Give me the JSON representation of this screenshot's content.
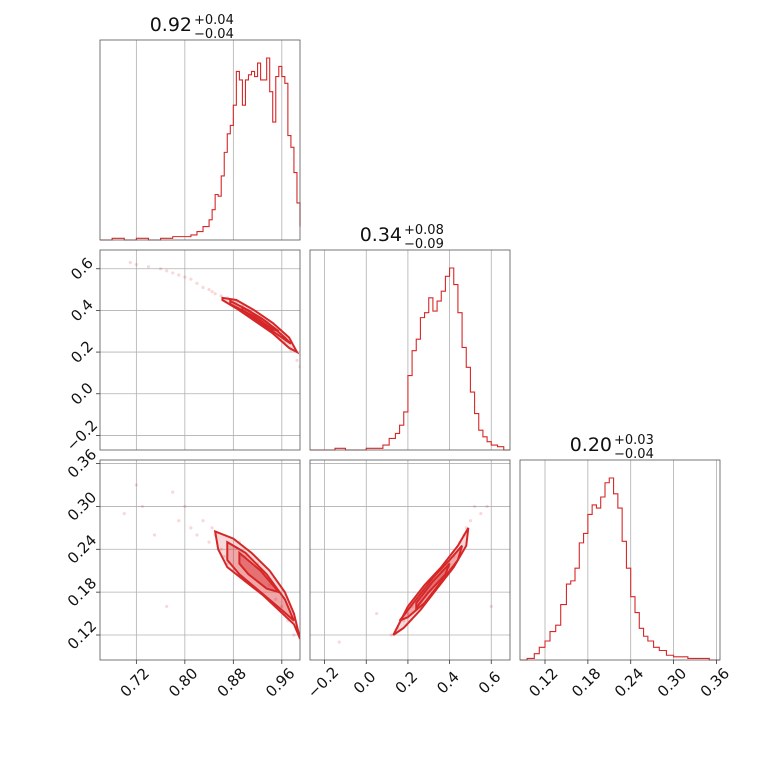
{
  "chart_data": {
    "type": "corner",
    "color": "#d62728",
    "parameters": [
      {
        "title": {
          "value": "0.92",
          "plus": "+0.04",
          "minus": "−0.04"
        },
        "range": [
          0.66,
          0.99
        ],
        "ticks": [
          0.72,
          0.8,
          0.88,
          0.96
        ],
        "tick_labels": [
          "0.72",
          "0.80",
          "0.88",
          "0.96"
        ],
        "hist_x": [
          0.66,
          0.68,
          0.7,
          0.72,
          0.74,
          0.76,
          0.78,
          0.8,
          0.81,
          0.82,
          0.83,
          0.84,
          0.845,
          0.85,
          0.855,
          0.86,
          0.865,
          0.87,
          0.875,
          0.88,
          0.885,
          0.89,
          0.895,
          0.9,
          0.905,
          0.91,
          0.915,
          0.92,
          0.925,
          0.93,
          0.935,
          0.94,
          0.945,
          0.95,
          0.955,
          0.96,
          0.965,
          0.97,
          0.975,
          0.98,
          0.985,
          0.99
        ],
        "hist_counts": [
          0,
          1,
          0,
          1,
          0,
          1,
          2,
          2,
          3,
          5,
          8,
          12,
          18,
          27,
          26,
          38,
          52,
          63,
          68,
          80,
          100,
          95,
          80,
          95,
          98,
          100,
          97,
          105,
          95,
          95,
          108,
          88,
          70,
          97,
          103,
          97,
          93,
          62,
          55,
          40,
          22,
          8
        ]
      },
      {
        "title": {
          "value": "0.34",
          "plus": "+0.08",
          "minus": "−0.09"
        },
        "range": [
          -0.27,
          0.69
        ],
        "ticks": [
          -0.2,
          0.0,
          0.2,
          0.4,
          0.6
        ],
        "tick_labels": [
          "−0.2",
          "0.0",
          "0.2",
          "0.4",
          "0.6"
        ],
        "hist_x": [
          -0.27,
          -0.2,
          -0.15,
          -0.1,
          -0.05,
          0.0,
          0.05,
          0.08,
          0.11,
          0.14,
          0.16,
          0.18,
          0.2,
          0.22,
          0.24,
          0.26,
          0.28,
          0.3,
          0.32,
          0.34,
          0.36,
          0.38,
          0.4,
          0.42,
          0.44,
          0.46,
          0.48,
          0.5,
          0.52,
          0.54,
          0.56,
          0.58,
          0.6,
          0.63,
          0.66,
          0.69
        ],
        "hist_counts": [
          0,
          0,
          1,
          0,
          0,
          1,
          1,
          3,
          7,
          10,
          15,
          23,
          45,
          60,
          67,
          80,
          83,
          92,
          84,
          90,
          96,
          105,
          110,
          100,
          83,
          62,
          50,
          35,
          22,
          12,
          8,
          5,
          3,
          2,
          0,
          0
        ]
      },
      {
        "title": {
          "value": "0.20",
          "plus": "+0.03",
          "minus": "−0.04"
        },
        "range": [
          0.085,
          0.365
        ],
        "ticks": [
          0.12,
          0.18,
          0.24,
          0.3,
          0.36
        ],
        "tick_labels": [
          "0.12",
          "0.18",
          "0.24",
          "0.30",
          "0.36"
        ],
        "hist_x": [
          0.085,
          0.095,
          0.105,
          0.112,
          0.12,
          0.127,
          0.135,
          0.142,
          0.15,
          0.156,
          0.162,
          0.168,
          0.174,
          0.18,
          0.186,
          0.192,
          0.198,
          0.204,
          0.21,
          0.216,
          0.222,
          0.228,
          0.234,
          0.24,
          0.246,
          0.252,
          0.258,
          0.264,
          0.272,
          0.28,
          0.29,
          0.3,
          0.31,
          0.32,
          0.335,
          0.35,
          0.365
        ],
        "hist_counts": [
          0,
          1,
          4,
          8,
          12,
          18,
          22,
          35,
          48,
          50,
          58,
          74,
          80,
          92,
          98,
          96,
          103,
          112,
          115,
          105,
          96,
          75,
          58,
          40,
          30,
          20,
          15,
          12,
          8,
          6,
          3,
          2,
          2,
          1,
          1,
          0,
          0
        ]
      }
    ],
    "pairs": [
      {
        "x": 0,
        "y": 1,
        "points": [
          [
            0.71,
            0.63
          ],
          [
            0.72,
            0.62
          ],
          [
            0.74,
            0.61
          ],
          [
            0.76,
            0.6
          ],
          [
            0.77,
            0.59
          ],
          [
            0.78,
            0.58
          ],
          [
            0.79,
            0.57
          ],
          [
            0.8,
            0.56
          ],
          [
            0.81,
            0.55
          ],
          [
            0.82,
            0.53
          ],
          [
            0.83,
            0.51
          ],
          [
            0.84,
            0.5
          ],
          [
            0.845,
            0.49
          ],
          [
            0.85,
            0.48
          ],
          [
            0.86,
            0.47
          ],
          [
            0.87,
            0.46
          ],
          [
            0.875,
            0.45
          ],
          [
            0.885,
            0.44
          ],
          [
            0.895,
            0.42
          ],
          [
            0.905,
            0.4
          ],
          [
            0.915,
            0.38
          ],
          [
            0.925,
            0.36
          ],
          [
            0.935,
            0.34
          ],
          [
            0.945,
            0.31
          ],
          [
            0.955,
            0.28
          ],
          [
            0.965,
            0.25
          ],
          [
            0.975,
            0.21
          ],
          [
            0.985,
            0.16
          ],
          [
            0.99,
            0.13
          ]
        ],
        "contours": [
          [
            [
              0.862,
              0.46
            ],
            [
              0.885,
              0.45
            ],
            [
              0.915,
              0.4
            ],
            [
              0.945,
              0.34
            ],
            [
              0.972,
              0.27
            ],
            [
              0.985,
              0.2
            ],
            [
              0.972,
              0.22
            ],
            [
              0.945,
              0.29
            ],
            [
              0.915,
              0.35
            ],
            [
              0.885,
              0.41
            ],
            [
              0.862,
              0.45
            ]
          ],
          [
            [
              0.875,
              0.445
            ],
            [
              0.905,
              0.4
            ],
            [
              0.935,
              0.345
            ],
            [
              0.965,
              0.27
            ],
            [
              0.975,
              0.24
            ],
            [
              0.955,
              0.28
            ],
            [
              0.925,
              0.34
            ],
            [
              0.895,
              0.4
            ],
            [
              0.875,
              0.43
            ]
          ],
          [
            [
              0.895,
              0.415
            ],
            [
              0.925,
              0.365
            ],
            [
              0.955,
              0.3
            ],
            [
              0.945,
              0.31
            ],
            [
              0.915,
              0.37
            ],
            [
              0.895,
              0.4
            ]
          ]
        ]
      },
      {
        "x": 0,
        "y": 2,
        "points": [
          [
            0.7,
            0.29
          ],
          [
            0.72,
            0.33
          ],
          [
            0.73,
            0.3
          ],
          [
            0.75,
            0.26
          ],
          [
            0.77,
            0.16
          ],
          [
            0.78,
            0.32
          ],
          [
            0.79,
            0.28
          ],
          [
            0.8,
            0.3
          ],
          [
            0.81,
            0.27
          ],
          [
            0.82,
            0.26
          ],
          [
            0.83,
            0.28
          ],
          [
            0.84,
            0.25
          ],
          [
            0.845,
            0.27
          ],
          [
            0.85,
            0.26
          ],
          [
            0.86,
            0.24
          ],
          [
            0.865,
            0.23
          ],
          [
            0.87,
            0.22
          ],
          [
            0.88,
            0.21
          ],
          [
            0.89,
            0.25
          ],
          [
            0.9,
            0.23
          ],
          [
            0.92,
            0.22
          ],
          [
            0.94,
            0.19
          ],
          [
            0.95,
            0.17
          ],
          [
            0.96,
            0.16
          ],
          [
            0.97,
            0.14
          ],
          [
            0.98,
            0.12
          ],
          [
            0.99,
            0.115
          ]
        ],
        "contours": [
          [
            [
              0.85,
              0.265
            ],
            [
              0.88,
              0.255
            ],
            [
              0.91,
              0.235
            ],
            [
              0.94,
              0.21
            ],
            [
              0.965,
              0.18
            ],
            [
              0.98,
              0.15
            ],
            [
              0.99,
              0.115
            ],
            [
              0.98,
              0.135
            ],
            [
              0.955,
              0.155
            ],
            [
              0.93,
              0.175
            ],
            [
              0.9,
              0.195
            ],
            [
              0.87,
              0.215
            ],
            [
              0.855,
              0.24
            ]
          ],
          [
            [
              0.87,
              0.25
            ],
            [
              0.9,
              0.235
            ],
            [
              0.935,
              0.205
            ],
            [
              0.965,
              0.17
            ],
            [
              0.98,
              0.14
            ],
            [
              0.96,
              0.155
            ],
            [
              0.925,
              0.18
            ],
            [
              0.89,
              0.205
            ],
            [
              0.87,
              0.225
            ]
          ],
          [
            [
              0.89,
              0.235
            ],
            [
              0.925,
              0.21
            ],
            [
              0.955,
              0.18
            ],
            [
              0.935,
              0.185
            ],
            [
              0.905,
              0.205
            ],
            [
              0.89,
              0.22
            ]
          ]
        ]
      },
      {
        "x": 1,
        "y": 2,
        "points": [
          [
            -0.13,
            0.11
          ],
          [
            0.05,
            0.15
          ],
          [
            0.12,
            0.12
          ],
          [
            0.15,
            0.13
          ],
          [
            0.18,
            0.14
          ],
          [
            0.2,
            0.15
          ],
          [
            0.22,
            0.16
          ],
          [
            0.25,
            0.17
          ],
          [
            0.28,
            0.18
          ],
          [
            0.3,
            0.19
          ],
          [
            0.33,
            0.2
          ],
          [
            0.36,
            0.21
          ],
          [
            0.39,
            0.22
          ],
          [
            0.42,
            0.23
          ],
          [
            0.45,
            0.25
          ],
          [
            0.47,
            0.26
          ],
          [
            0.48,
            0.27
          ],
          [
            0.5,
            0.28
          ],
          [
            0.52,
            0.3
          ],
          [
            0.55,
            0.29
          ],
          [
            0.58,
            0.3
          ],
          [
            0.6,
            0.16
          ]
        ],
        "contours": [
          [
            [
              0.13,
              0.12
            ],
            [
              0.2,
              0.16
            ],
            [
              0.28,
              0.19
            ],
            [
              0.36,
              0.215
            ],
            [
              0.44,
              0.245
            ],
            [
              0.49,
              0.27
            ],
            [
              0.48,
              0.245
            ],
            [
              0.42,
              0.215
            ],
            [
              0.34,
              0.185
            ],
            [
              0.26,
              0.155
            ],
            [
              0.18,
              0.13
            ]
          ],
          [
            [
              0.16,
              0.14
            ],
            [
              0.24,
              0.17
            ],
            [
              0.32,
              0.2
            ],
            [
              0.4,
              0.225
            ],
            [
              0.46,
              0.245
            ],
            [
              0.44,
              0.225
            ],
            [
              0.36,
              0.195
            ],
            [
              0.28,
              0.165
            ],
            [
              0.2,
              0.145
            ]
          ],
          [
            [
              0.24,
              0.165
            ],
            [
              0.32,
              0.195
            ],
            [
              0.4,
              0.22
            ],
            [
              0.38,
              0.205
            ],
            [
              0.3,
              0.18
            ],
            [
              0.24,
              0.158
            ]
          ]
        ]
      }
    ]
  }
}
